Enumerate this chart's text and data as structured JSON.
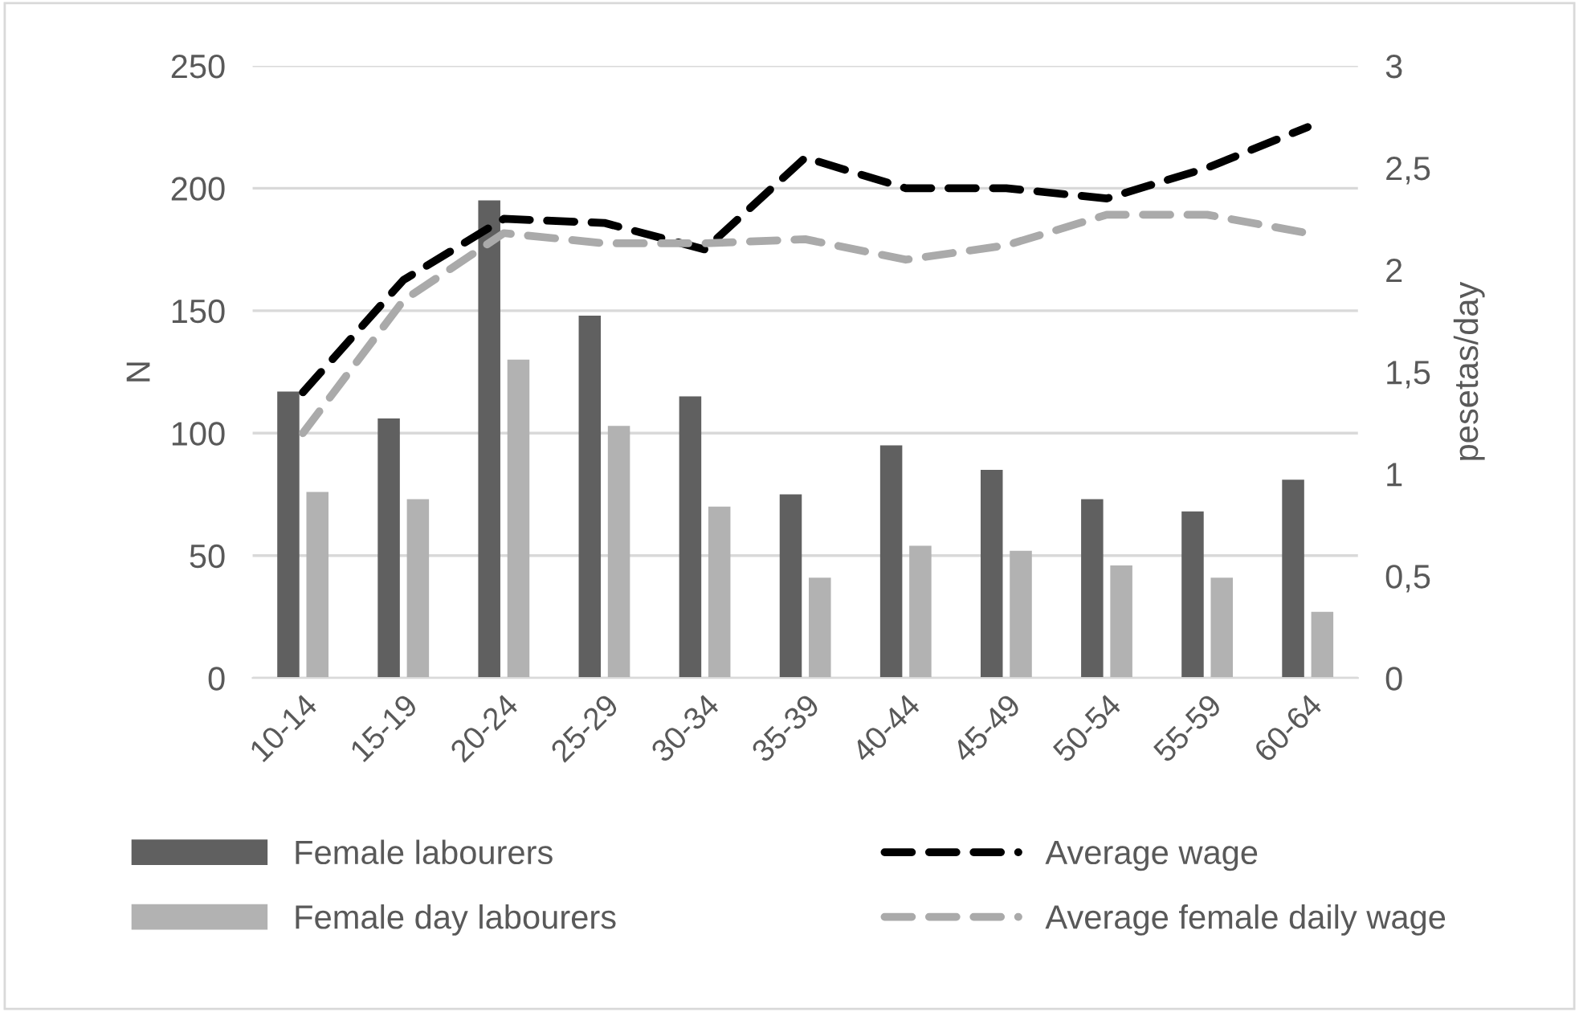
{
  "chart_data": {
    "type": "bar",
    "categories": [
      "10-14",
      "15-19",
      "20-24",
      "25-29",
      "30-34",
      "35-39",
      "40-44",
      "45-49",
      "50-54",
      "55-59",
      "60-64"
    ],
    "series": [
      {
        "name": "Female labourers",
        "color": "#606060",
        "values": [
          117,
          106,
          195,
          148,
          115,
          75,
          95,
          85,
          73,
          68,
          81
        ]
      },
      {
        "name": "Female day labourers",
        "color": "#b2b2b2",
        "values": [
          76,
          73,
          130,
          103,
          70,
          41,
          54,
          52,
          46,
          41,
          27
        ]
      },
      {
        "name": "Average wage",
        "type": "line",
        "axis": "y2",
        "color": "#000000",
        "line_style": "dashed",
        "values": [
          1.4,
          1.95,
          2.25,
          2.23,
          2.1,
          2.55,
          2.4,
          2.4,
          2.35,
          2.5,
          2.7
        ]
      },
      {
        "name": "Average female daily wage",
        "type": "line",
        "axis": "y2",
        "color": "#aaaaaa",
        "line_style": "dashed",
        "values": [
          1.2,
          1.85,
          2.18,
          2.13,
          2.13,
          2.15,
          2.05,
          2.12,
          2.27,
          2.27,
          2.18
        ]
      }
    ],
    "ylabel": "N",
    "y2label": "pesetas/day",
    "ylim": [
      0,
      250
    ],
    "yticks": [
      0,
      50,
      100,
      150,
      200,
      250
    ],
    "y2lim": [
      0,
      3
    ],
    "y2ticks": [
      0,
      {
        "value": 0.5,
        "label": "0,5"
      },
      1,
      {
        "value": 1.5,
        "label": "1,5"
      },
      2,
      {
        "value": 2.5,
        "label": "2,5"
      },
      3
    ],
    "grid": "y",
    "legend": "bottom",
    "marker": "none"
  }
}
